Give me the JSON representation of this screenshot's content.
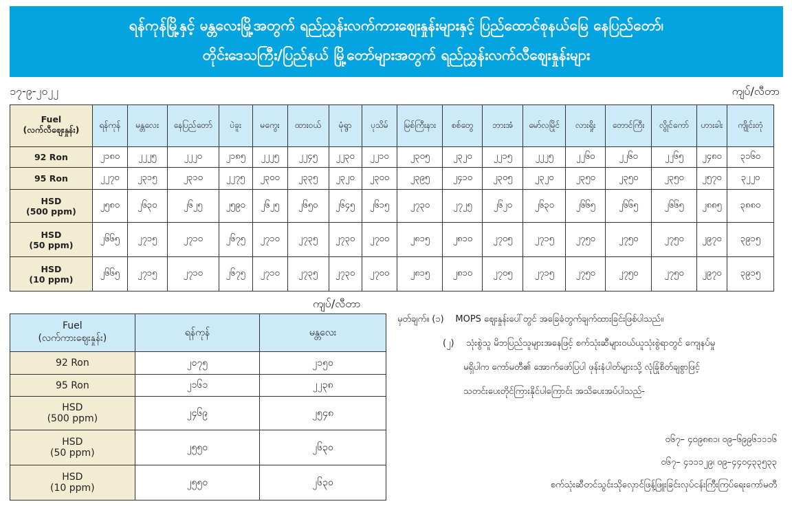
{
  "banner": {
    "line1": "ရန်ကုန်မြို့နှင့် မန္တလေးမြို့အတွက် ရည်ညွှန်းလက်ကားဈေးနှုန်းများနှင့် ပြည်ထောင်စုနယ်မြေ နေပြည်တော်၊",
    "line2": "တိုင်းဒေသကြီး/ပြည်နယ် မြို့တော်များအတွက် ရည်ညွှန်းလက်လီဈေးနှုန်းများ",
    "color": "#04a4e0"
  },
  "date": "၁၇-၉-၂၀၂၂",
  "unit": "ကျပ်/လီတာ",
  "retail_table": {
    "fuel_header": "Fuel",
    "fuel_sub": "(လက်လီဈေးနှုန်း)",
    "cities": [
      "ရန်ကုန်",
      "မန္တလေး",
      "နေပြည်တော်",
      "ပဲခူး",
      "မကွေး",
      "ထားဝယ်",
      "မုံရွာ",
      "ပုသိမ်",
      "မြစ်ကြီးနား",
      "စစ်တွေ",
      "ဘားအံ",
      "မော်လမြိုင်",
      "လားရှိုး",
      "တောင်ကြီး",
      "လွိုင်ကော်",
      "ဟားခါး",
      "ကျိုင်းတုံ"
    ],
    "rows": [
      {
        "fuel": "92 Ron",
        "sub": "",
        "values": [
          "၂၁၈၀",
          "၂၂၂၅",
          "၂၂၂၀",
          "၂၁၈၅",
          "၂၂၂၅",
          "၂၂၄၅",
          "၂၂၃၀",
          "၂၂၁၀",
          "၂၃၀၅",
          "၂၃၂၀",
          "၂၂၁၅",
          "၂၂၂၅",
          "၂၂၆၀",
          "၂၂၆၀",
          "၂၂၆၅",
          "၂၄၈၀",
          "၃၁၆၀"
        ]
      },
      {
        "fuel": "95 Ron",
        "sub": "",
        "values": [
          "၂၂၇၀",
          "၂၃၁၅",
          "၂၃၁၀",
          "၂၂၇၅",
          "၂၃၀၀",
          "၂၃၃၅",
          "၂၃၂၀",
          "၂၃၀၀",
          "၂၃၉၅",
          "၂၄၁၀",
          "၂၃၀၅",
          "၂၃၂၀",
          "၂၃၅၀",
          "၂၃၅၀",
          "၂၃၅၀",
          "၂၅၇၀",
          "၃၂၂၀"
        ]
      },
      {
        "fuel": "HSD",
        "sub": "(500 ppm)",
        "values": [
          "၂၅၈၀",
          "၂၆၃၀",
          "၂၆၂၅",
          "၂၅၉၀",
          "၂၆၂၅",
          "၂၆၅၀",
          "၂၆၄၅",
          "၂၆၁၅",
          "၂၇၃၀",
          "၂၇၂၅",
          "၂၆၂၀",
          "၂၆၃၀",
          "၂၆၆၅",
          "၂၆၆၅",
          "၂၆၆၅",
          "၂၈၈၅",
          "၃၈၈၀"
        ]
      },
      {
        "fuel": "HSD",
        "sub": "(50 ppm)",
        "values": [
          "၂၆၆၅",
          "၂၇၁၅",
          "၂၇၁၀",
          "၂၆၇၅",
          "၂၇၁၀",
          "၂၇၃၅",
          "၂၇၃၀",
          "၂၇၀၀",
          "၂၈၁၅",
          "၂၈၁၀",
          "၂၇၀၅",
          "၂၇၁၅",
          "၂၇၅၀",
          "၂၇၅၀",
          "၂၇၅၀",
          "၂၉၇၀",
          "၃၉၁၅"
        ]
      },
      {
        "fuel": "HSD",
        "sub": "(10 ppm)",
        "values": [
          "၂၆၆၅",
          "၂၇၁၅",
          "၂၇၁၀",
          "၂၆၇၅",
          "၂၇၁၀",
          "၂၇၃၅",
          "၂၇၃၀",
          "၂၇၀၀",
          "၂၈၁၅",
          "၂၈၁၀",
          "၂၇၀၅",
          "၂၇၁၅",
          "၂၇၅၀",
          "၂၇၅၀",
          "၂၇၅၀",
          "၂၉၇၀",
          "၃၉၁၅"
        ]
      }
    ]
  },
  "wholesale_table": {
    "fuel_header": "Fuel",
    "fuel_sub": "(လက်ကားဈေးနှုန်း)",
    "cities": [
      "ရန်ကုန်",
      "မန္တလေး"
    ],
    "rows": [
      {
        "fuel": "92 Ron",
        "sub": "",
        "values": [
          "၂၀၇၅",
          "၂၁၅၀"
        ]
      },
      {
        "fuel": "95 Ron",
        "sub": "",
        "values": [
          "၂၁၆၁",
          "၂၂၃၈"
        ]
      },
      {
        "fuel": "HSD",
        "sub": "(500 ppm)",
        "values": [
          "၂၄၆၉",
          "၂၅၄၈"
        ]
      },
      {
        "fuel": "HSD",
        "sub": "(50 ppm)",
        "values": [
          "၂၅၅၀",
          "၂၆၃၀"
        ]
      },
      {
        "fuel": "HSD",
        "sub": "(10 ppm)",
        "values": [
          "၂၅၅၀",
          "၂၆၃၀"
        ]
      }
    ]
  },
  "notes": {
    "label": "မှတ်ချက်။",
    "n1": "(၁)",
    "t1": "MOPS ဈေးနှုန်းပေါ်တွင် အခြေခံတွက်ချက်ထားခြင်းဖြစ်ပါသည်။",
    "n2": "(၂)",
    "t2a": "သုံးစွဲသူ မိဘပြည်သူများအနေဖြင့် စက်သုံးဆီများဝယ်ယူသုံးစွဲရာတွင် ကျေနပ်မှု",
    "t2b": "မရှိပါက  ကော်မတီ၏ အောက်ဖော်ပြပါ ဖုန်းနံပါတ်များသို့ လုံခြုံစိတ်ချစွာဖြင့်",
    "t2c": "သတင်းပေးတိုင်ကြားနိုင်ပါကြောင်း အသိပေးအပ်ပါသည်-"
  },
  "contact": {
    "phone1": "၀၆၇– ၄၀၉၈၈၁၊ ၀၉–၆၉၉၆၁၁၁၆",
    "phone2": "၀၆၇–  ၄၁၁၁၂၉၊ ၀၉–၄၄၀၄၃၃၅၃၃",
    "committee": "စက်သုံးဆီတင်သွင်းသိုလှောင်ဖြန့်ဖြူးခြင်းလုပ်ငန်းကြီးကြပ်ရေးကော်မတီ"
  }
}
